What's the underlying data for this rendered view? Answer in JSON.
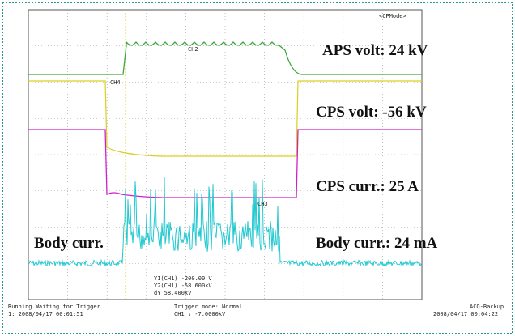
{
  "screen": {
    "mode_label": "<CPMode>",
    "annotations": {
      "aps_volt": "APS volt: 24 kV",
      "cps_volt": "CPS volt: -56 kV",
      "cps_curr": "CPS curr.: 25 A",
      "body_curr_left": "Body curr.",
      "body_curr_right": "Body curr.: 24 mA"
    },
    "trace_labels": {
      "ch2": "CH2",
      "ch4": "CH4",
      "ch3": "CH3"
    },
    "cursor": [
      "Y1(CH1)   -200.00 V",
      "Y2(CH1)   -58.600kV",
      "dY        58.400kV"
    ],
    "status": {
      "run_state": "Running Waiting for Trigger",
      "start_time": "1: 2008/04/17 00:01:51",
      "trigger": "Trigger mode: Normal",
      "trigger_level": "CH1  ↓  -7.0000kV",
      "acq": "ACQ-Backup",
      "end_time": "2008/04/17 00:04:22"
    }
  }
}
